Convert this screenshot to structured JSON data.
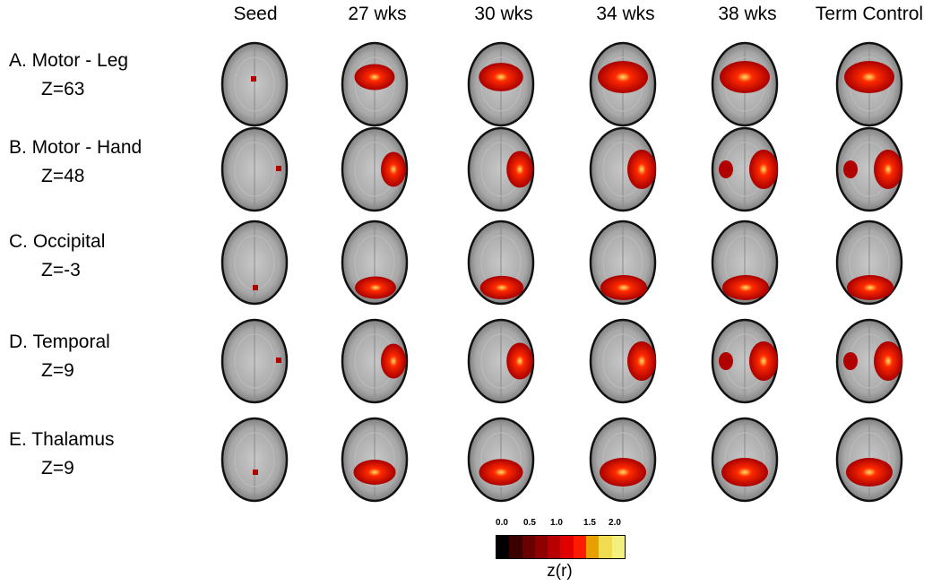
{
  "columns": [
    "Seed",
    "27 wks",
    "30 wks",
    "34 wks",
    "38 wks",
    "Term Control"
  ],
  "rows": [
    {
      "label": "A. Motor - Leg",
      "z": "Z=63",
      "seed_pos": "upper-center",
      "activation": "dorsal-central"
    },
    {
      "label": "B. Motor - Hand",
      "z": "Z=48",
      "seed_pos": "right-lateral",
      "activation": "right-lateral"
    },
    {
      "label": "C. Occipital",
      "z": "Z=-3",
      "seed_pos": "posterior",
      "activation": "posterior"
    },
    {
      "label": "D. Temporal",
      "z": "Z=9",
      "seed_pos": "right-lateral",
      "activation": "right-temporal"
    },
    {
      "label": "E. Thalamus",
      "z": "Z=9",
      "seed_pos": "center",
      "activation": "central-bilateral"
    }
  ],
  "colorbar": {
    "ticks": [
      "0.0",
      "0.5",
      "1.0",
      "1.5",
      "2.0"
    ],
    "label": "z(r)",
    "colors": [
      "#000000",
      "#3a0000",
      "#6a0000",
      "#8f0000",
      "#b80000",
      "#e00000",
      "#ff1a00",
      "#e8a000",
      "#f0dc50",
      "#f4f080"
    ]
  }
}
